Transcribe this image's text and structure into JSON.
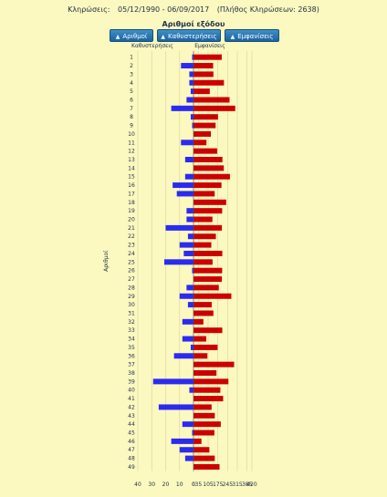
{
  "header": {
    "draws_label": "Κληρώσεις:",
    "date_range": "05/12/1990 - 06/09/2017",
    "draws_count": "(Πλήθος Κληρώσεων: 2638)"
  },
  "section_title": "Αριθμοί εξόδου",
  "sort_buttons": [
    {
      "label": "Αριθμοί",
      "icon": "arrow-up-icon"
    },
    {
      "label": "Καθυστερήσεις",
      "icon": "arrow-up-icon"
    },
    {
      "label": "Εμφανίσεις",
      "icon": "arrow-up-icon"
    }
  ],
  "colors": {
    "background": "#fbf8c0",
    "delay_bar": "#2b2bf0",
    "appearance_bar": "#cc0000",
    "grid": "#d8d49a"
  },
  "chart_data": {
    "type": "bar",
    "orientation": "horizontal-diverging",
    "ylabel": "Αριθμοί",
    "left_header": "Καθυστερήσεις",
    "right_header": "Εμφανίσεις",
    "categories": [
      "1",
      "2",
      "3",
      "4",
      "5",
      "6",
      "7",
      "8",
      "9",
      "10",
      "11",
      "12",
      "13",
      "14",
      "15",
      "16",
      "17",
      "18",
      "19",
      "20",
      "21",
      "22",
      "23",
      "24",
      "25",
      "26",
      "27",
      "28",
      "29",
      "30",
      "31",
      "32",
      "33",
      "34",
      "35",
      "36",
      "37",
      "38",
      "39",
      "40",
      "41",
      "42",
      "43",
      "44",
      "45",
      "46",
      "47",
      "48",
      "49"
    ],
    "left_axis": {
      "range": [
        40,
        0
      ],
      "ticks": [
        40,
        30,
        20,
        10,
        0
      ]
    },
    "right_axis": {
      "range": [
        0,
        420
      ],
      "ticks": [
        0,
        35,
        105,
        175,
        245,
        315,
        385,
        420
      ],
      "tick_labels": [
        "0",
        "35",
        "105",
        "175",
        "245",
        "315",
        "385",
        "420"
      ]
    },
    "series": [
      {
        "name": "Καθυστερήσεις",
        "side": "left",
        "values": [
          1,
          9,
          3,
          3,
          2,
          5,
          16,
          2,
          1,
          0,
          9,
          0,
          6,
          0,
          6,
          15,
          12,
          0,
          5,
          5,
          20,
          4,
          10,
          7,
          21,
          1,
          0,
          5,
          10,
          4,
          0,
          8,
          0,
          8,
          2,
          14,
          0,
          0,
          29,
          3,
          0,
          25,
          0,
          8,
          1,
          16,
          10,
          6,
          0
        ]
      },
      {
        "name": "Εμφανίσεις",
        "side": "right",
        "values": [
          203,
          141,
          143,
          219,
          117,
          259,
          300,
          176,
          159,
          125,
          93,
          170,
          208,
          218,
          262,
          201,
          152,
          235,
          206,
          136,
          204,
          161,
          128,
          207,
          137,
          206,
          204,
          182,
          272,
          131,
          143,
          71,
          207,
          92,
          173,
          100,
          292,
          165,
          251,
          193,
          213,
          130,
          153,
          196,
          150,
          57,
          114,
          153,
          187
        ]
      }
    ]
  }
}
